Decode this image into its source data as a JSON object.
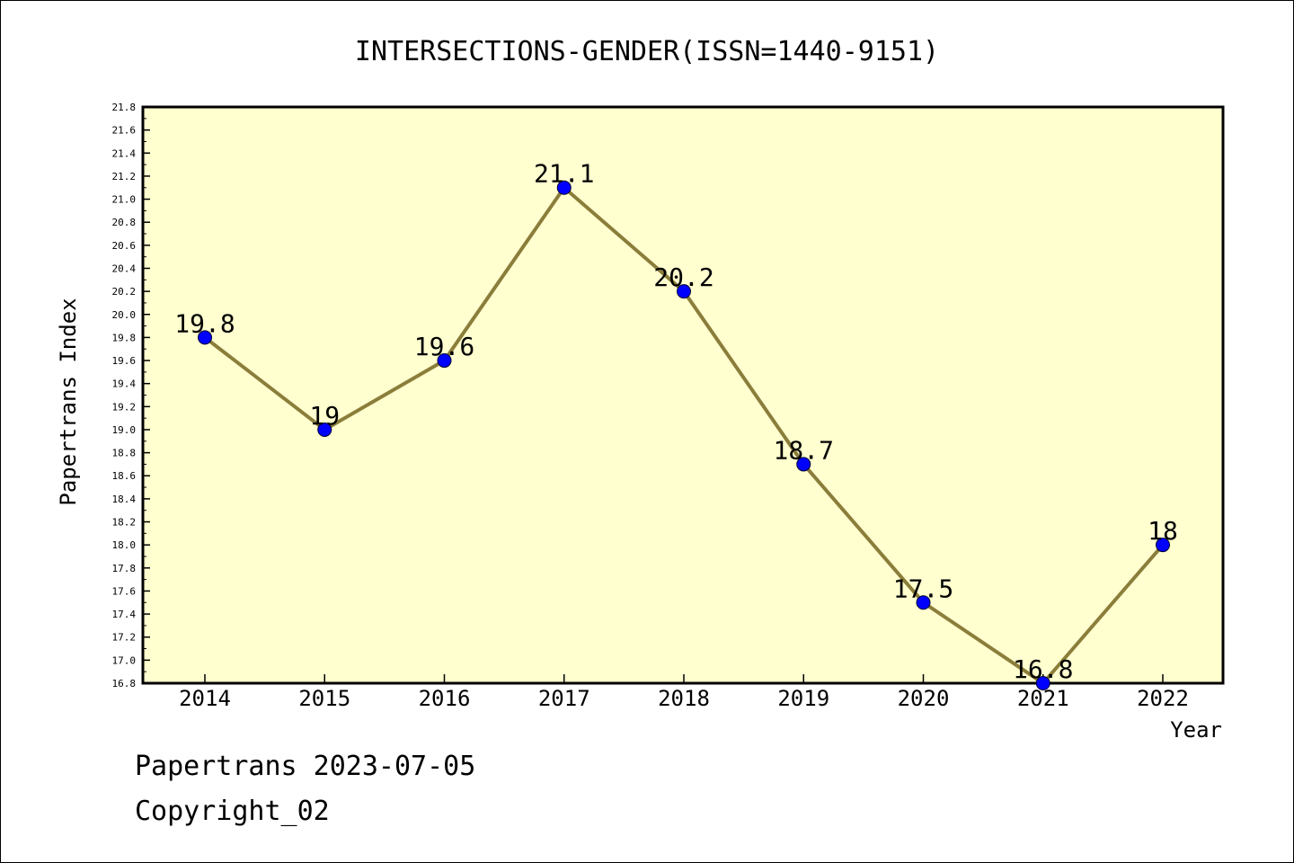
{
  "chart_data": {
    "type": "line",
    "title": "INTERSECTIONS-GENDER(ISSN=1440-9151)",
    "xlabel": "Year",
    "ylabel": "Papertrans Index",
    "categories": [
      "2014",
      "2015",
      "2016",
      "2017",
      "2018",
      "2019",
      "2020",
      "2021",
      "2022"
    ],
    "series": [
      {
        "values": [
          19.8,
          19.0,
          19.6,
          21.1,
          20.2,
          18.7,
          17.5,
          16.8,
          18.0
        ],
        "labels": [
          "19.8",
          "19",
          "19.6",
          "21.1",
          "20.2",
          "18.7",
          "17.5",
          "16.8",
          "18"
        ]
      }
    ],
    "ylim": [
      16.8,
      21.8
    ],
    "yticks": [
      "16.8",
      "17.0",
      "17.2",
      "17.4",
      "17.6",
      "17.8",
      "18.0",
      "18.2",
      "18.4",
      "18.6",
      "18.8",
      "19.0",
      "19.2",
      "19.4",
      "19.6",
      "19.8",
      "20.0",
      "20.2",
      "20.4",
      "20.6",
      "20.8",
      "21.0",
      "21.2",
      "21.4",
      "21.6",
      "21.8"
    ],
    "grid": false,
    "legend": "none",
    "colors": {
      "plot_background": "#ffffd0",
      "line": "#8b7d3a",
      "marker": "#0000ff",
      "axes": "#000000"
    }
  },
  "footer": {
    "line1": "Papertrans 2023-07-05",
    "line2": "Copyright_02"
  }
}
